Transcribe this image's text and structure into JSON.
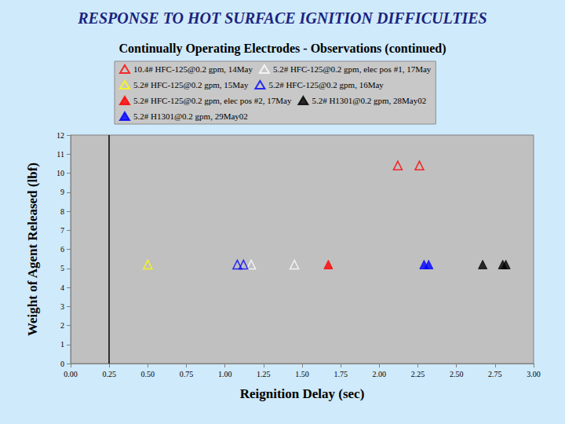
{
  "chart_data": {
    "type": "scatter",
    "title": "RESPONSE TO HOT SURFACE IGNITION DIFFICULTIES",
    "subtitle": "Continually Operating Electrodes - Observations (continued)",
    "x_label": "Reignition Delay (sec)",
    "y_label": "Weight of Agent Released (lbf)",
    "xlim": [
      0,
      3
    ],
    "xticks": [
      {
        "value": 0,
        "label": "0.00"
      },
      {
        "value": 0.25,
        "label": "0.25"
      },
      {
        "value": 0.5,
        "label": "0.50"
      },
      {
        "value": 0.75,
        "label": "0.75"
      },
      {
        "value": 1,
        "label": "1.00"
      },
      {
        "value": 1.25,
        "label": "1.25"
      },
      {
        "value": 1.5,
        "label": "1.50"
      },
      {
        "value": 1.75,
        "label": "1.75"
      },
      {
        "value": 2,
        "label": "2.00"
      },
      {
        "value": 2.25,
        "label": "2.25"
      },
      {
        "value": 2.5,
        "label": "2.50"
      },
      {
        "value": 2.75,
        "label": "2.75"
      },
      {
        "value": 3,
        "label": "3.00"
      }
    ],
    "ylim": [
      0,
      12
    ],
    "yticks": [
      0,
      1,
      2,
      3,
      4,
      5,
      6,
      7,
      8,
      9,
      10,
      11,
      12
    ],
    "vlines": [
      0.25
    ],
    "grid": false,
    "legend": "top",
    "series": [
      {
        "name": "10.4# HFC-125@0.2 gpm, 14May",
        "color": "#ff0000",
        "marker": "triangle_open",
        "x": [
          2.12,
          2.26
        ],
        "values": [
          10.4,
          10.4
        ]
      },
      {
        "name": "5.2# HFC-125@0.2 gpm, elec pos #1, 17May",
        "color": "#ffffff",
        "marker": "triangle_open",
        "x": [
          1.17,
          1.45
        ],
        "values": [
          5.2,
          5.2
        ]
      },
      {
        "name": "5.2# HFC-125@0.2 gpm, 15May",
        "color": "#ffff00",
        "marker": "triangle_open",
        "x": [
          0.5
        ],
        "values": [
          5.2
        ]
      },
      {
        "name": "5.2# HFC-125@0.2 gpm, 16May",
        "color": "#0000ff",
        "marker": "triangle_open",
        "x": [
          1.08,
          1.12
        ],
        "values": [
          5.2,
          5.2
        ]
      },
      {
        "name": "5.2# HFC-125@0.2 gpm, elec pos #2, 17May",
        "color": "#ff0000",
        "marker": "triangle",
        "x": [
          1.67
        ],
        "values": [
          5.2
        ]
      },
      {
        "name": "5.2# H1301@0.2 gpm, 28May02",
        "color": "#000000",
        "marker": "triangle",
        "x": [
          2.67,
          2.8,
          2.82
        ],
        "values": [
          5.2,
          5.2,
          5.2
        ]
      },
      {
        "name": "5.2# H1301@0.2 gpm, 29May02",
        "color": "#0000ff",
        "marker": "triangle",
        "x": [
          2.29,
          2.32
        ],
        "values": [
          5.2,
          5.2
        ]
      }
    ]
  }
}
